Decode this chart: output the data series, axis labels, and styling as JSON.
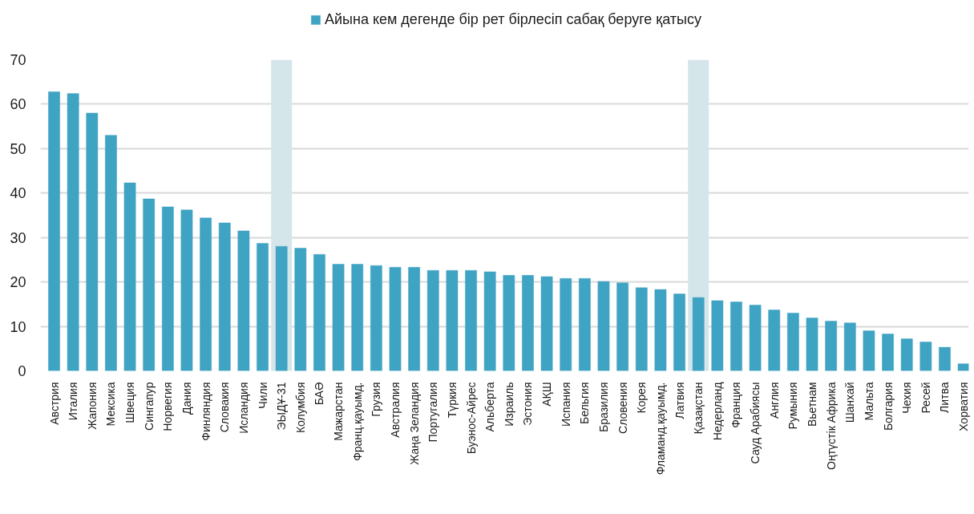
{
  "chart_data": {
    "type": "bar",
    "categories": [
      "Австрия",
      "Италия",
      "Жапония",
      "Мексика",
      "Швеция",
      "Сингапур",
      "Норвегия",
      "Дания",
      "Финляндия",
      "Словакия",
      "Исландия",
      "Чили",
      "ЭЫДҰ-31",
      "Колумбия",
      "БАӘ",
      "Мажарстан",
      "Франц.қауымд.",
      "Грузия",
      "Австралия",
      "Жаңа Зеландия",
      "Португалия",
      "Түркия",
      "Буэнос-Айрес",
      "Альберта",
      "Израиль",
      "Эстония",
      "АҚШ",
      "Испания",
      "Бельгия",
      "Бразилия",
      "Словения",
      "Корея",
      "Фламанд.қауымд.",
      "Латвия",
      "Қазақстан",
      "Недерланд",
      "Франция",
      "Сауд Арабиясы",
      "Англия",
      "Румыния",
      "Вьетнам",
      "Оңтүстік Африка",
      "Шанхай",
      "Мальта",
      "Болгария",
      "Чехия",
      "Ресей",
      "Литва",
      "Хорватия"
    ],
    "series": [
      {
        "name": "Айына кем дегенде бір рет бірлесіп сабақ беруге қатысу",
        "color": "#3fa3c3",
        "values": [
          62.8,
          62.4,
          58.0,
          53.0,
          42.3,
          38.7,
          36.9,
          36.2,
          34.4,
          33.3,
          31.5,
          28.7,
          28.0,
          27.6,
          26.2,
          24.0,
          24.0,
          23.7,
          23.3,
          23.3,
          22.6,
          22.6,
          22.6,
          22.3,
          21.5,
          21.5,
          21.2,
          20.8,
          20.8,
          20.1,
          19.8,
          18.7,
          18.3,
          17.3,
          16.5,
          15.8,
          15.5,
          14.8,
          13.7,
          13.0,
          11.9,
          11.2,
          10.8,
          9.0,
          8.3,
          7.2,
          6.5,
          5.3,
          1.6
        ]
      }
    ],
    "ylim": [
      0,
      70
    ],
    "yticks": [
      0,
      10,
      20,
      30,
      40,
      50,
      60,
      70
    ],
    "grid": "y",
    "legend": "top",
    "bands": [
      {
        "axis": "x",
        "from": "ЭЫДҰ-31",
        "to": "ЭЫДҰ-31",
        "color": "#d5e6eb"
      },
      {
        "axis": "x",
        "from": "Қазақстан",
        "to": "Қазақстан",
        "color": "#d5e6eb"
      }
    ]
  }
}
